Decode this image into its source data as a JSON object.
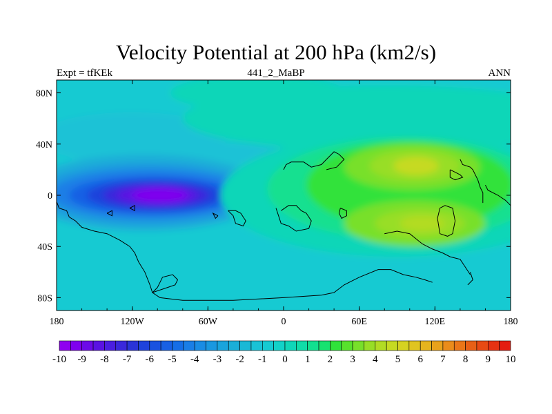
{
  "figure": {
    "title": "Velocity Potential at 200 hPa (km2/s)",
    "left_label": "Expt = tfKEk",
    "center_label": "441_2_MaBP",
    "right_label": "ANN"
  },
  "chart_data": {
    "type": "heatmap",
    "title": "Velocity Potential at 200 hPa (km2/s)",
    "xlabel": "",
    "ylabel": "",
    "xlim": [
      -180,
      180
    ],
    "ylim": [
      -90,
      90
    ],
    "x_ticks": [
      {
        "value": -180,
        "label": "180"
      },
      {
        "value": -120,
        "label": "120W"
      },
      {
        "value": -60,
        "label": "60W"
      },
      {
        "value": 0,
        "label": "0"
      },
      {
        "value": 60,
        "label": "60E"
      },
      {
        "value": 120,
        "label": "120E"
      },
      {
        "value": 180,
        "label": "180"
      }
    ],
    "y_ticks": [
      {
        "value": 80,
        "label": "80N"
      },
      {
        "value": 40,
        "label": "40N"
      },
      {
        "value": 0,
        "label": "0"
      },
      {
        "value": -40,
        "label": "40S"
      },
      {
        "value": -80,
        "label": "80S"
      }
    ],
    "colorbar": {
      "levels": [
        -10,
        -9.5,
        -9,
        -8.5,
        -8,
        -7.5,
        -7,
        -6.5,
        -6,
        -5.5,
        -5,
        -4.5,
        -4,
        -3.5,
        -3,
        -2.5,
        -2,
        -1.5,
        -1,
        -0.5,
        0,
        0.5,
        1,
        1.5,
        2,
        2.5,
        3,
        3.5,
        4,
        4.5,
        5,
        5.5,
        6,
        6.5,
        7,
        7.5,
        8,
        8.5,
        9,
        9.5,
        10
      ],
      "labels": [
        "-10",
        "-9",
        "-8",
        "-7",
        "-6",
        "-5",
        "-4",
        "-3",
        "-2",
        "-1",
        "0",
        "1",
        "2",
        "3",
        "4",
        "5",
        "6",
        "7",
        "8",
        "9",
        "10"
      ],
      "colors": [
        "#8f00f0",
        "#7f00ee",
        "#6c0ae8",
        "#5a12e2",
        "#4a1ee0",
        "#3a28dc",
        "#2a34d8",
        "#1e42dc",
        "#1a52e0",
        "#1860e4",
        "#166ee6",
        "#1a7ee6",
        "#1a8ce4",
        "#1a98e0",
        "#1aa4dc",
        "#1aaed8",
        "#1ab8d6",
        "#1ac2d6",
        "#16cad2",
        "#12d2c8",
        "#10d6b8",
        "#10dca8",
        "#12e090",
        "#18e270",
        "#30e23a",
        "#58e22c",
        "#78e02a",
        "#98de26",
        "#b2dc24",
        "#c6da22",
        "#d6d222",
        "#e0c420",
        "#e6b41e",
        "#e8a21c",
        "#ea8c1a",
        "#ea7618",
        "#e86016",
        "#e84a14",
        "#e63212",
        "#e41c10"
      ]
    },
    "field_features": [
      {
        "label": "negative center (minimum)",
        "lon": -100,
        "lat": 0,
        "value": -9.2
      },
      {
        "label": "positive center (maximum)",
        "lon": 105,
        "lat": 23,
        "value": 4.8
      },
      {
        "label": "positive center (maximum)",
        "lon": 110,
        "lat": -22,
        "value": 4.4
      }
    ],
    "coastline": "approximate world coastlines (coarse grid)",
    "grid": false,
    "colorbar_position": "bottom"
  }
}
